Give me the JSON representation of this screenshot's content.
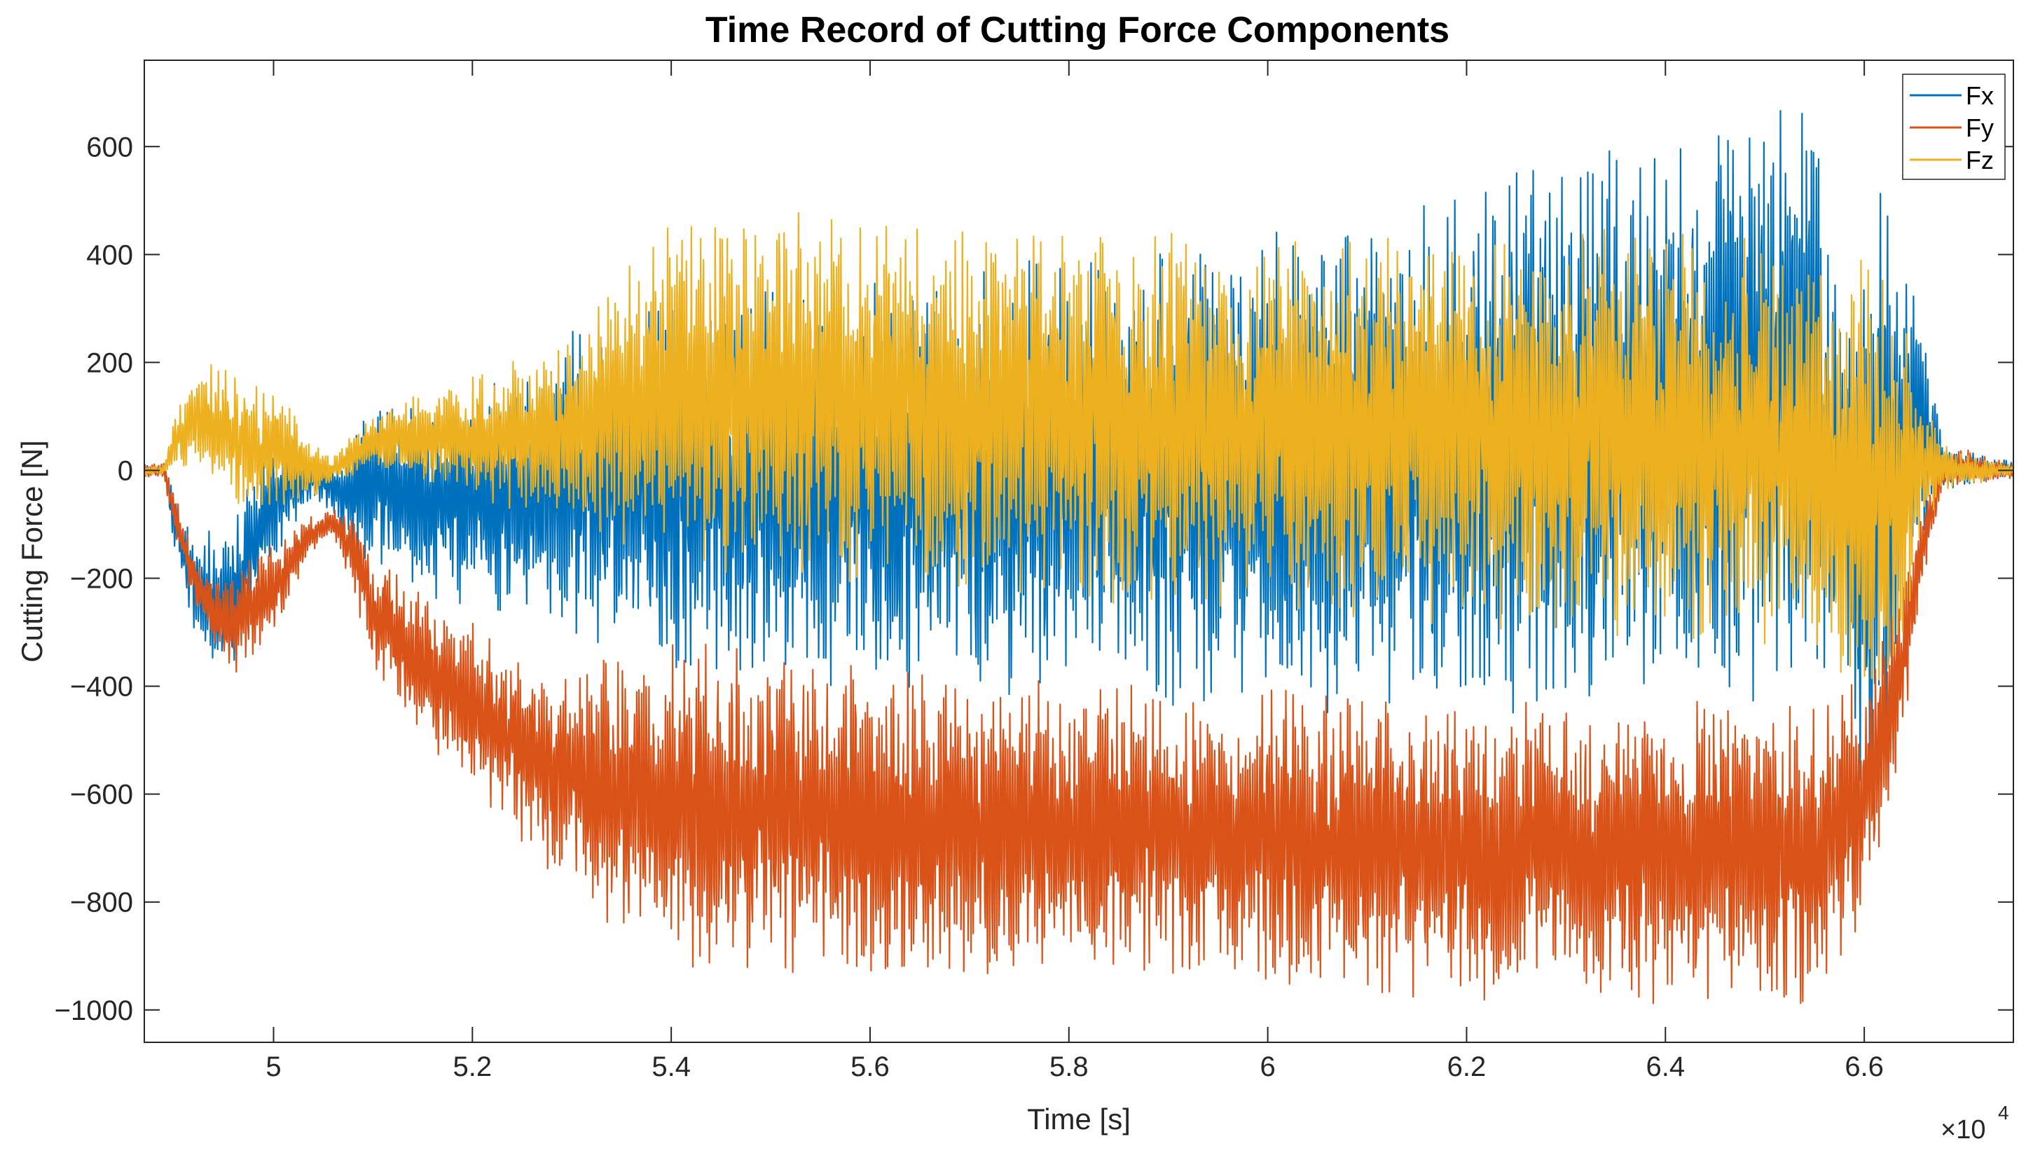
{
  "chart_data": {
    "type": "line",
    "title": "Time Record of Cutting Force Components",
    "xlabel": "Time [s]",
    "ylabel": "Cutting Force [N]",
    "x_exponent_base": "×10",
    "x_exponent_power": "4",
    "xlim": [
      4.87,
      6.75
    ],
    "ylim": [
      -1060,
      760
    ],
    "x_ticks": [
      5,
      5.2,
      5.4,
      5.6,
      5.8,
      6,
      6.2,
      6.4,
      6.6
    ],
    "x_tick_labels": [
      "5",
      "5.2",
      "5.4",
      "5.6",
      "5.8",
      "6",
      "6.2",
      "6.4",
      "6.6"
    ],
    "y_ticks": [
      600,
      400,
      200,
      0,
      -200,
      -400,
      -600,
      -800,
      -1000
    ],
    "y_tick_labels": [
      "600",
      "400",
      "200",
      "0",
      "−200",
      "−400",
      "−600",
      "−800",
      "−1000"
    ],
    "grid": false,
    "legend_position": "top-right",
    "series": [
      {
        "name": "Fx",
        "color": "#0072BD",
        "envelope_x": [
          4.87,
          4.89,
          4.9,
          4.92,
          4.94,
          4.96,
          4.98,
          5.0,
          5.02,
          5.04,
          5.06,
          5.08,
          5.1,
          5.15,
          5.2,
          5.25,
          5.3,
          5.35,
          5.4,
          5.5,
          5.6,
          5.7,
          5.8,
          5.9,
          6.0,
          6.1,
          6.2,
          6.3,
          6.4,
          6.5,
          6.55,
          6.58,
          6.6,
          6.62,
          6.64,
          6.66,
          6.68,
          6.7,
          6.75
        ],
        "envelope_max": [
          10,
          10,
          -40,
          -80,
          -120,
          -90,
          0,
          60,
          60,
          20,
          20,
          80,
          140,
          120,
          150,
          180,
          260,
          300,
          320,
          340,
          360,
          380,
          400,
          420,
          450,
          490,
          530,
          580,
          630,
          690,
          720,
          250,
          550,
          560,
          400,
          300,
          50,
          40,
          15
        ],
        "envelope_min": [
          -10,
          -10,
          -150,
          -330,
          -380,
          -360,
          -260,
          -180,
          -110,
          -50,
          -90,
          -160,
          -190,
          -240,
          -250,
          -290,
          -320,
          -360,
          -380,
          -400,
          -410,
          -420,
          -430,
          -440,
          -450,
          -460,
          -460,
          -450,
          -450,
          -430,
          -420,
          -350,
          -780,
          -640,
          -300,
          -150,
          -40,
          -30,
          -10
        ]
      },
      {
        "name": "Fy",
        "color": "#D95319",
        "envelope_x": [
          4.87,
          4.89,
          4.9,
          4.92,
          4.94,
          4.96,
          4.98,
          5.0,
          5.02,
          5.04,
          5.06,
          5.08,
          5.1,
          5.15,
          5.2,
          5.25,
          5.3,
          5.35,
          5.4,
          5.5,
          5.6,
          5.7,
          5.8,
          5.9,
          6.0,
          6.1,
          6.2,
          6.3,
          6.4,
          6.5,
          6.55,
          6.58,
          6.6,
          6.62,
          6.64,
          6.66,
          6.68,
          6.7,
          6.75
        ],
        "envelope_max": [
          15,
          15,
          -40,
          -150,
          -200,
          -190,
          -150,
          -140,
          -110,
          -80,
          -70,
          -80,
          -140,
          -230,
          -280,
          -330,
          -350,
          -320,
          -300,
          -330,
          -350,
          -380,
          -390,
          -400,
          -400,
          -410,
          -420,
          -420,
          -420,
          -420,
          -420,
          -400,
          -380,
          -300,
          -150,
          -60,
          30,
          40,
          15
        ],
        "envelope_min": [
          -15,
          -15,
          -120,
          -250,
          -330,
          -380,
          -350,
          -300,
          -220,
          -150,
          -120,
          -220,
          -380,
          -500,
          -600,
          -700,
          -800,
          -880,
          -920,
          -950,
          -950,
          -950,
          -950,
          -940,
          -950,
          -980,
          -990,
          -990,
          -1000,
          -1010,
          -1000,
          -900,
          -850,
          -700,
          -500,
          -200,
          -40,
          -30,
          -15
        ]
      },
      {
        "name": "Fz",
        "color": "#EDB120",
        "envelope_x": [
          4.87,
          4.89,
          4.9,
          4.92,
          4.94,
          4.96,
          4.98,
          5.0,
          5.02,
          5.04,
          5.06,
          5.08,
          5.1,
          5.15,
          5.2,
          5.25,
          5.3,
          5.35,
          5.4,
          5.5,
          5.6,
          5.7,
          5.8,
          5.9,
          6.0,
          6.1,
          6.2,
          6.3,
          6.4,
          6.5,
          6.55,
          6.58,
          6.6,
          6.62,
          6.64,
          6.66,
          6.68,
          6.7,
          6.75
        ],
        "envelope_max": [
          10,
          10,
          110,
          190,
          200,
          180,
          170,
          150,
          110,
          60,
          30,
          70,
          110,
          150,
          180,
          210,
          280,
          380,
          460,
          500,
          480,
          470,
          450,
          440,
          430,
          440,
          460,
          460,
          450,
          430,
          400,
          300,
          420,
          380,
          280,
          160,
          50,
          30,
          10
        ],
        "envelope_min": [
          -10,
          -10,
          -10,
          0,
          -40,
          -60,
          -100,
          -80,
          -60,
          -60,
          -30,
          -10,
          0,
          -30,
          -60,
          -90,
          -120,
          -150,
          -180,
          -200,
          -220,
          -230,
          -240,
          -260,
          -270,
          -280,
          -300,
          -310,
          -320,
          -340,
          -350,
          -380,
          -400,
          -500,
          -300,
          -150,
          -40,
          -30,
          -10
        ]
      }
    ]
  }
}
